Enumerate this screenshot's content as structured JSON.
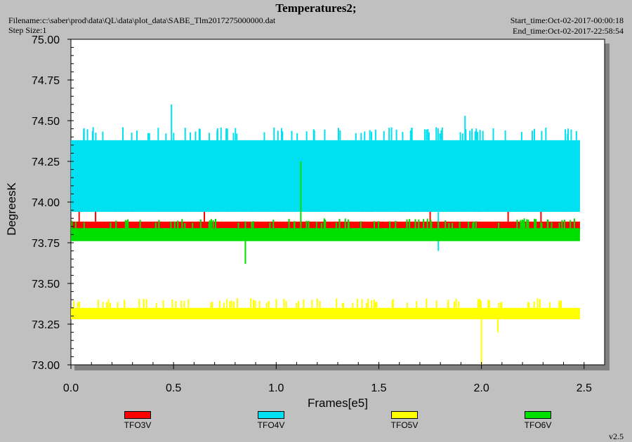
{
  "header": {
    "title": "Temperatures2;",
    "filename": "Filename:c:\\saber\\prod\\data\\QL\\data\\plot_data\\SABE_Tlm2017275000000.dat",
    "step_size": "Step Size:1",
    "start_time": "Start_time:Oct-02-2017-00:00:18",
    "end_time": "End_time:Oct-02-2017-22:58:54"
  },
  "version": "v2.5",
  "chart_data": {
    "type": "line",
    "title": "Temperatures2;",
    "xlabel": "Frames[e5]",
    "ylabel": "DegreesK",
    "xlim": [
      0.0,
      2.6
    ],
    "ylim": [
      73.0,
      75.0
    ],
    "x_ticks": [
      "0.0",
      "0.5",
      "1.0",
      "1.5",
      "2.0",
      "2.5"
    ],
    "y_ticks": [
      "73.00",
      "73.25",
      "73.50",
      "73.75",
      "74.00",
      "74.25",
      "74.50",
      "74.75",
      "75.00"
    ],
    "grid": false,
    "legend_position": "bottom",
    "series": [
      {
        "name": "TFO3V",
        "color": "#ff0000",
        "x_range": [
          0.0,
          2.48
        ],
        "band": [
          73.81,
          73.88
        ],
        "typical_range": [
          73.94,
          74.0
        ],
        "spikes": [
          {
            "x": 0.04,
            "y": 74.08
          },
          {
            "x": 0.12,
            "y": 74.05
          },
          {
            "x": 0.65,
            "y": 74.05
          },
          {
            "x": 1.75,
            "y": 74.05
          },
          {
            "x": 2.13,
            "y": 74.05
          },
          {
            "x": 2.29,
            "y": 74.03
          }
        ]
      },
      {
        "name": "TFO4V",
        "color": "#00e0f0",
        "x_range": [
          0.0,
          2.48
        ],
        "band": [
          73.94,
          74.38
        ],
        "typical_range": [
          74.38,
          74.46
        ],
        "spikes": [
          {
            "x": 0.49,
            "y": 74.6
          },
          {
            "x": 1.92,
            "y": 74.53
          },
          {
            "x": 1.79,
            "y": 73.7
          }
        ]
      },
      {
        "name": "TFO5V",
        "color": "#ffff00",
        "x_range": [
          0.0,
          2.48
        ],
        "band": [
          73.28,
          73.35
        ],
        "typical_range": [
          73.35,
          73.41
        ],
        "spikes": [
          {
            "x": 2.0,
            "y": 73.0
          },
          {
            "x": 2.08,
            "y": 73.2
          }
        ]
      },
      {
        "name": "TFO6V",
        "color": "#00e000",
        "x_range": [
          0.0,
          2.48
        ],
        "band": [
          73.76,
          73.84
        ],
        "typical_range": [
          73.84,
          73.9
        ],
        "spikes": [
          {
            "x": 1.12,
            "y": 74.25
          },
          {
            "x": 0.85,
            "y": 73.62
          }
        ]
      }
    ]
  }
}
